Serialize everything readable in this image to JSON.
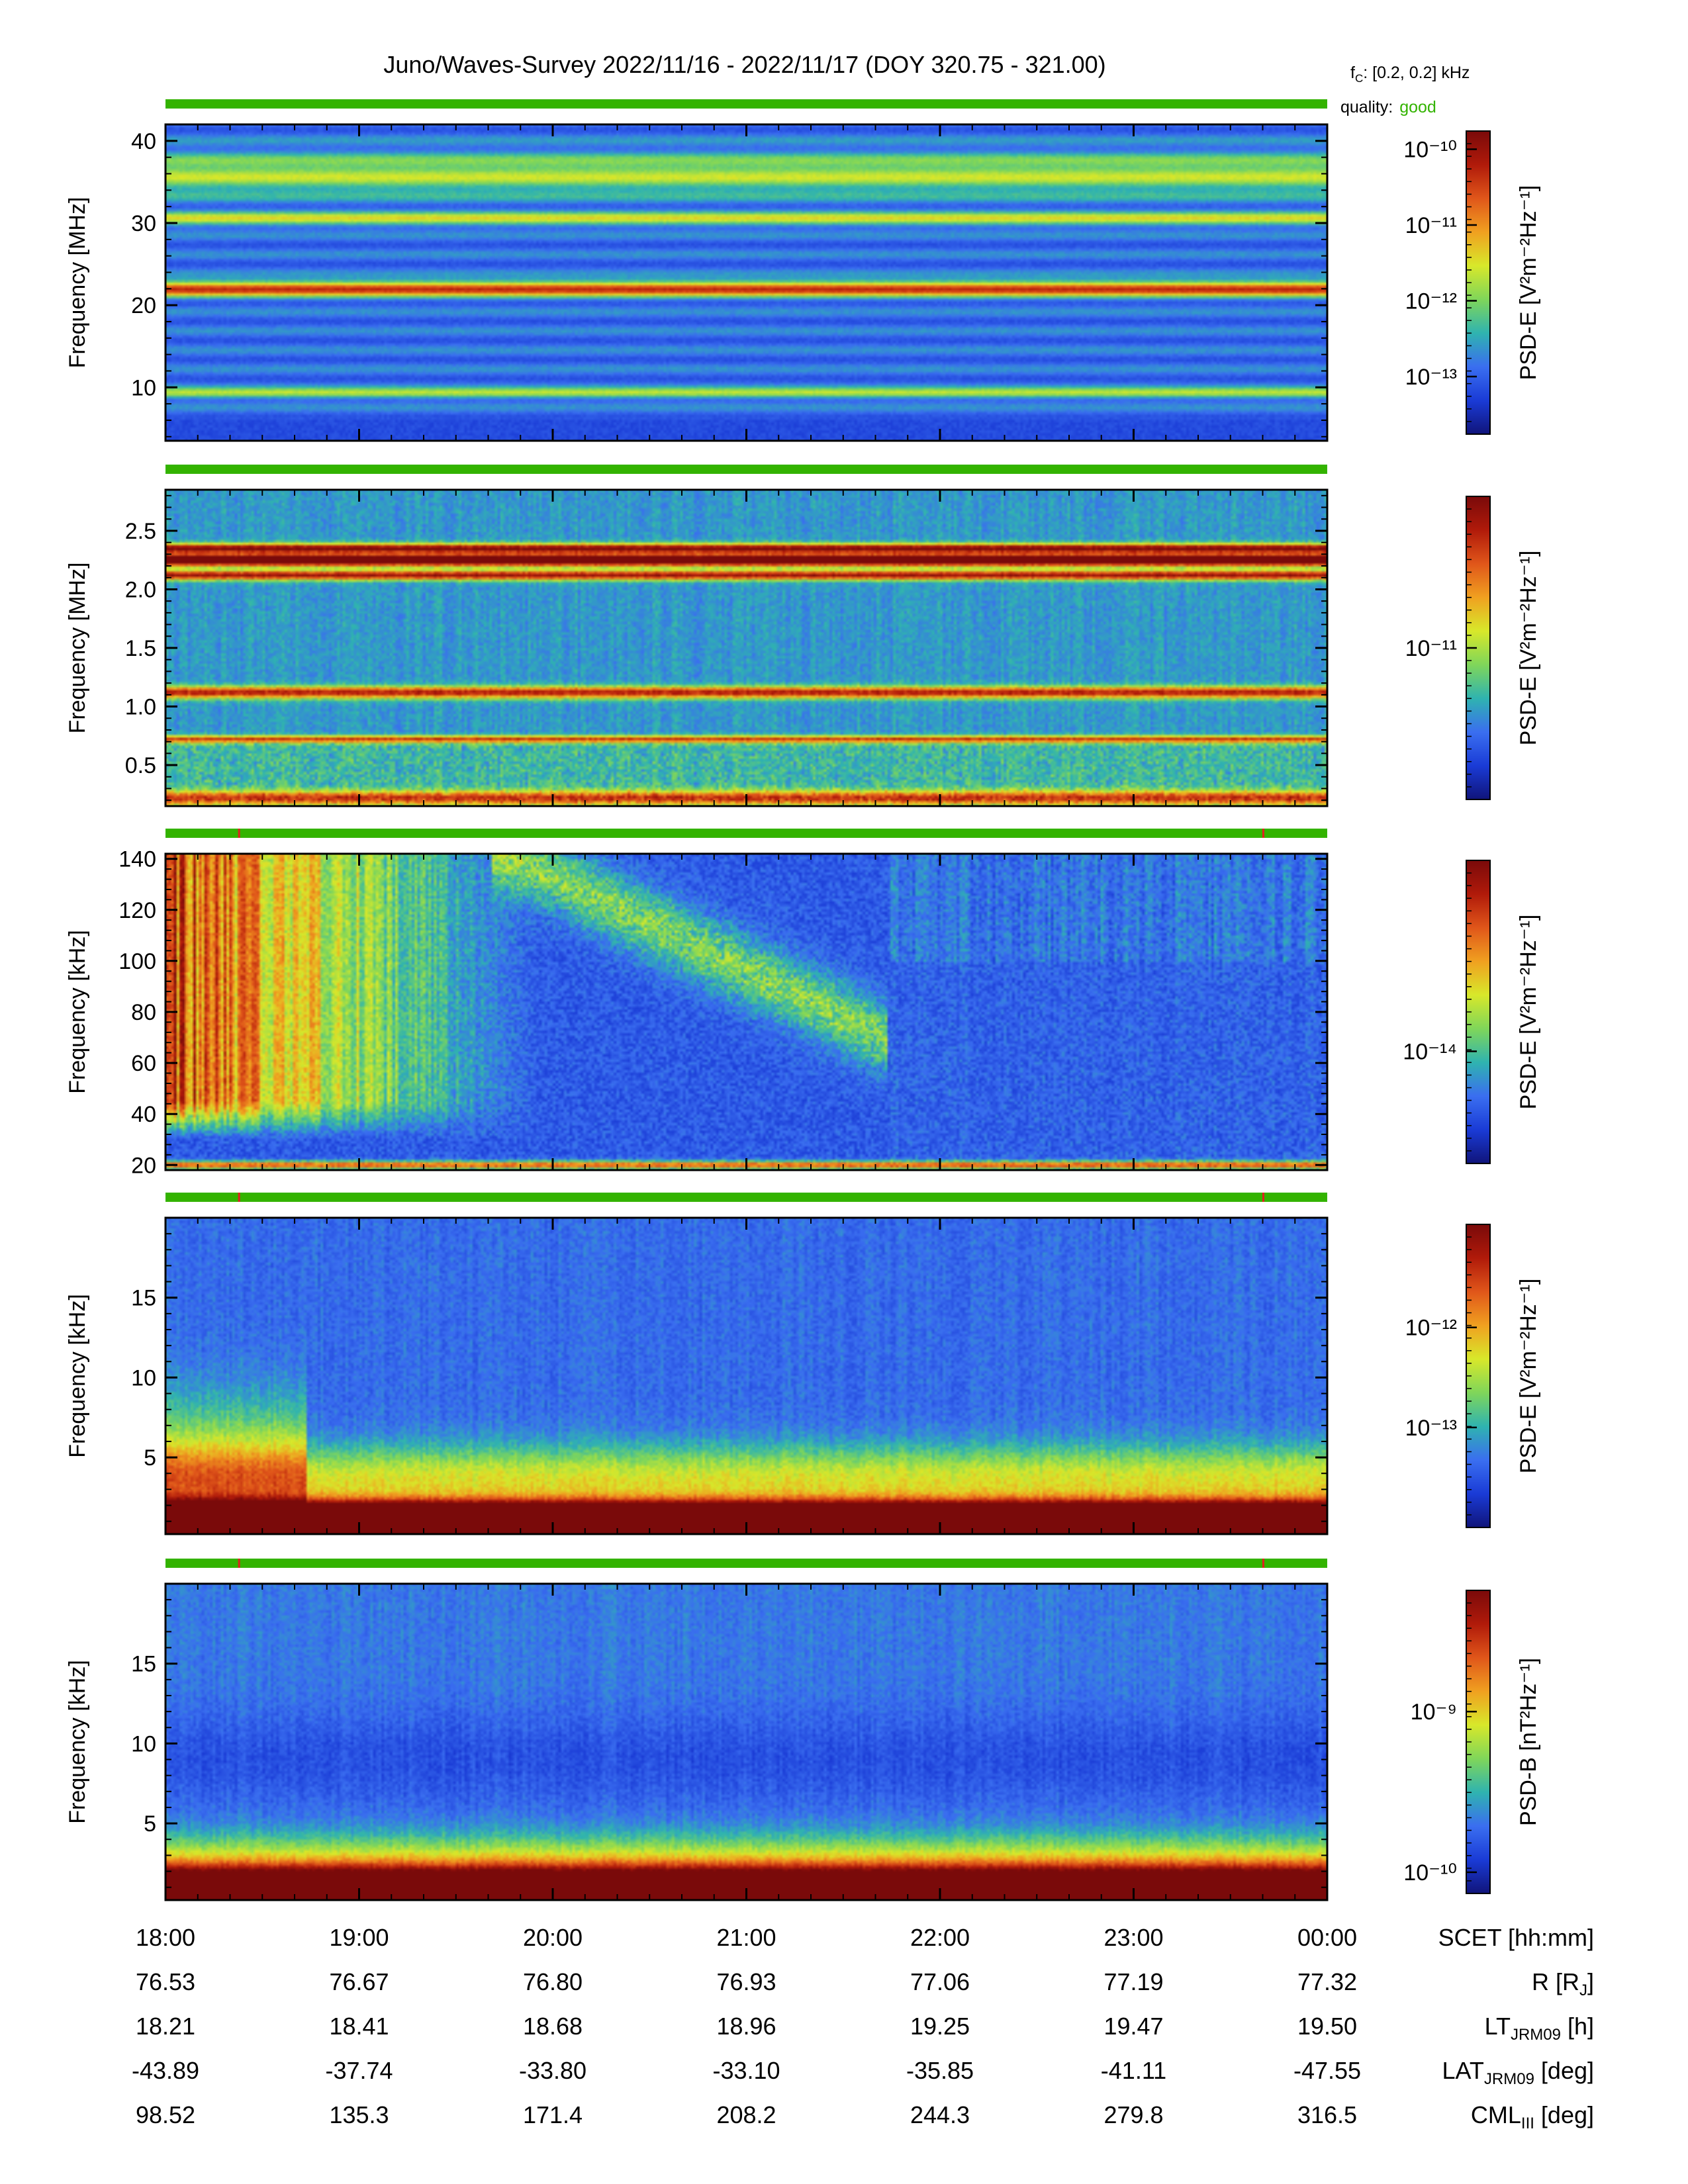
{
  "header": {
    "title": "Juno/Waves-Survey  2022/11/16 - 2022/11/17 (DOY 320.75 - 321.00)",
    "fc_label": "f",
    "fc_sub": "C",
    "fc_value": ": [0.2, 0.2] kHz",
    "quality_label": "quality:",
    "quality_value": "good",
    "quality_color": "#33b300"
  },
  "colormap": [
    "#10147a",
    "#1a3bd6",
    "#3a6ef0",
    "#2fb3b0",
    "#7fd65a",
    "#d8e82a",
    "#f0a020",
    "#e0561a",
    "#b01a0a",
    "#7a0a0a"
  ],
  "chart_data": [
    {
      "type": "heatmap",
      "ylabel": "Frequency [MHz]",
      "ylim": [
        3.5,
        42
      ],
      "yticks": [
        10,
        20,
        30,
        40
      ],
      "ytick_labels": [
        "10",
        "20",
        "30",
        "40"
      ],
      "colorbar_label": "PSD-E [V²m⁻²Hz⁻¹]",
      "colorbar_ticks": [
        {
          "label": "10⁻¹³",
          "f": 0.19
        },
        {
          "label": "10⁻¹²",
          "f": 0.44
        },
        {
          "label": "10⁻¹¹",
          "f": 0.69
        },
        {
          "label": "10⁻¹⁰",
          "f": 0.94
        }
      ],
      "quality_flags": [],
      "features": [
        {
          "freq": 22.0,
          "width": 0.9,
          "level": 0.62
        },
        {
          "freq": 30.5,
          "width": 0.8,
          "level": 0.32
        },
        {
          "freq": 9.3,
          "width": 0.6,
          "level": 0.3
        },
        {
          "freq": 36.0,
          "width": 2.5,
          "level": 0.28
        }
      ]
    },
    {
      "type": "heatmap",
      "ylabel": "Frequency [MHz]",
      "ylim": [
        0.15,
        2.85
      ],
      "yticks": [
        0.5,
        1.0,
        1.5,
        2.0,
        2.5
      ],
      "ytick_labels": [
        "0.5",
        "1.0",
        "1.5",
        "2.0",
        "2.5"
      ],
      "colorbar_label": "PSD-E [V²m⁻²Hz⁻¹]",
      "colorbar_ticks": [
        {
          "label": "10⁻¹¹",
          "f": 0.5
        }
      ],
      "quality_flags": [],
      "features": [
        {
          "freq": 2.25,
          "width": 0.05,
          "level": 0.95
        },
        {
          "freq": 2.35,
          "width": 0.04,
          "level": 0.7
        },
        {
          "freq": 2.12,
          "width": 0.04,
          "level": 0.65
        },
        {
          "freq": 1.12,
          "width": 0.05,
          "level": 0.6
        },
        {
          "freq": 0.72,
          "width": 0.03,
          "level": 0.55
        },
        {
          "freq": 0.22,
          "width": 0.06,
          "level": 0.5
        }
      ]
    },
    {
      "type": "heatmap",
      "ylabel": "Frequency [kHz]",
      "ylim": [
        18,
        142
      ],
      "yticks": [
        20,
        40,
        60,
        80,
        100,
        120,
        140
      ],
      "ytick_labels": [
        "20",
        "40",
        "60",
        "80",
        "100",
        "120",
        "140"
      ],
      "colorbar_label": "PSD-E [V²m⁻²Hz⁻¹]",
      "colorbar_ticks": [
        {
          "label": "10⁻¹⁴",
          "f": 0.37
        }
      ],
      "quality_flags": [
        18.38,
        23.67
      ],
      "features": [
        {
          "freq": 20,
          "width": 1.5,
          "level": 0.6
        }
      ]
    },
    {
      "type": "heatmap",
      "ylabel": "Frequency [kHz]",
      "ylim": [
        0.2,
        20
      ],
      "yticks": [
        5,
        10,
        15
      ],
      "ytick_labels": [
        "5",
        "10",
        "15"
      ],
      "colorbar_label": "PSD-E [V²m⁻²Hz⁻¹]",
      "colorbar_ticks": [
        {
          "label": "10⁻¹³",
          "f": 0.33
        },
        {
          "label": "10⁻¹²",
          "f": 0.66
        }
      ],
      "quality_flags": [
        18.38,
        23.67
      ],
      "features": [
        {
          "freq": 1.2,
          "width": 0.9,
          "level": 0.9
        }
      ]
    },
    {
      "type": "heatmap",
      "ylabel": "Frequency [kHz]",
      "ylim": [
        0.2,
        20
      ],
      "yticks": [
        5,
        10,
        15
      ],
      "ytick_labels": [
        "5",
        "10",
        "15"
      ],
      "colorbar_label": "PSD-B [nT²Hz⁻¹]",
      "colorbar_ticks": [
        {
          "label": "10⁻¹⁰",
          "f": 0.07
        },
        {
          "label": "10⁻⁹",
          "f": 0.6
        }
      ],
      "quality_flags": [
        18.38,
        23.67
      ],
      "features": [
        {
          "freq": 0.8,
          "width": 1.4,
          "level": 0.95
        }
      ]
    }
  ],
  "x_axis": {
    "xlim": [
      "18:00",
      "00:00"
    ],
    "rows": [
      {
        "name": "SCET [hh:mm]",
        "values": [
          "18:00",
          "19:00",
          "20:00",
          "21:00",
          "22:00",
          "23:00",
          "00:00"
        ]
      },
      {
        "name": "R [R",
        "sub": "J",
        "tail": "]",
        "values": [
          "76.53",
          "76.67",
          "76.80",
          "76.93",
          "77.06",
          "77.19",
          "77.32"
        ]
      },
      {
        "name": "LT",
        "sub": "JRM09",
        "tail": " [h]",
        "values": [
          "18.21",
          "18.41",
          "18.68",
          "18.96",
          "19.25",
          "19.47",
          "19.50"
        ]
      },
      {
        "name": "LAT",
        "sub": "JRM09",
        "tail": " [deg]",
        "values": [
          "-43.89",
          "-37.74",
          "-33.80",
          "-33.10",
          "-35.85",
          "-41.11",
          "-47.55"
        ]
      },
      {
        "name": "CML",
        "sub": "III",
        "tail": " [deg]",
        "values": [
          "98.52",
          "135.3",
          "171.4",
          "208.2",
          "244.3",
          "279.8",
          "316.5"
        ]
      }
    ]
  }
}
